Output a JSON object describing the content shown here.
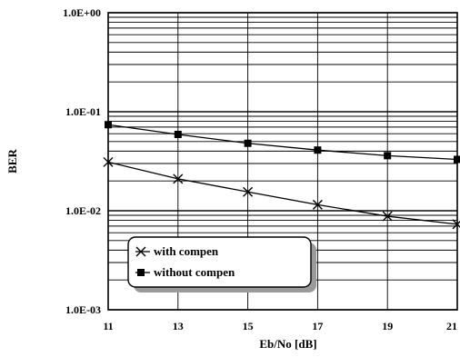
{
  "chart_data": {
    "type": "line",
    "title": "",
    "xlabel": "Eb/No [dB]",
    "ylabel": "BER",
    "xlim": [
      11,
      21
    ],
    "ylim": [
      0.001,
      1
    ],
    "yscale": "log",
    "grid": true,
    "x_ticks": [
      11,
      13,
      15,
      17,
      19,
      21
    ],
    "x_tick_labels": [
      "11",
      "13",
      "15",
      "17",
      "19",
      "21"
    ],
    "y_ticks": [
      1,
      0.1,
      0.01,
      0.001
    ],
    "y_tick_labels": [
      "1.0E+00",
      "1.0E-01",
      "1.0E-02",
      "1.0E-03"
    ],
    "legend_position": "bottom-left",
    "series": [
      {
        "name": "with compen",
        "marker": "x",
        "x": [
          11,
          13,
          15,
          17,
          19,
          21
        ],
        "values": [
          0.031,
          0.021,
          0.0155,
          0.0115,
          0.0088,
          0.0073
        ]
      },
      {
        "name": "without compen",
        "marker": "square",
        "x": [
          11,
          13,
          15,
          17,
          19,
          21
        ],
        "values": [
          0.074,
          0.059,
          0.048,
          0.041,
          0.036,
          0.033
        ]
      }
    ]
  }
}
